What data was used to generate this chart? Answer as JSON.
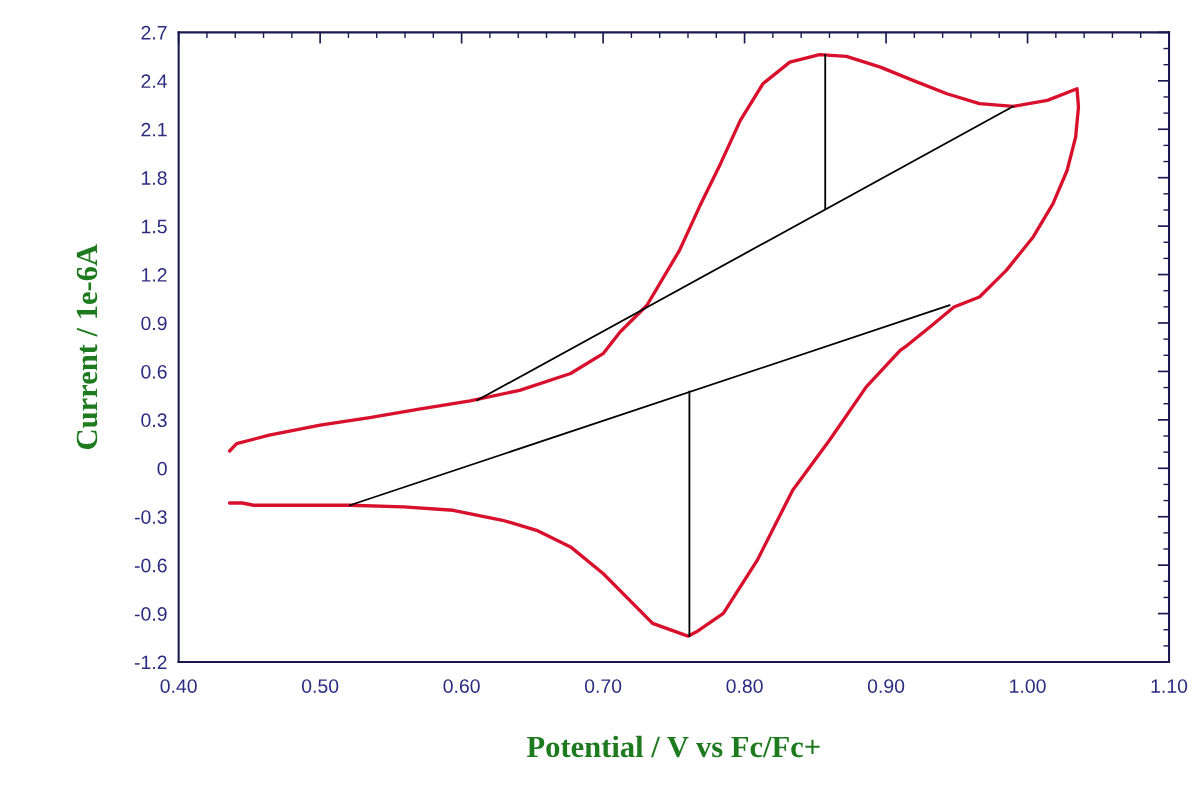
{
  "chart_data": {
    "type": "line",
    "xlabel": "Potential / V vs Fc/Fc+",
    "ylabel": "Current / 1e-6A",
    "xlim": [
      0.4,
      1.1
    ],
    "ylim": [
      -1.2,
      2.7
    ],
    "xticks": [
      {
        "value": 0.4,
        "label": "0.40"
      },
      {
        "value": 0.5,
        "label": "0.50"
      },
      {
        "value": 0.6,
        "label": "0.60"
      },
      {
        "value": 0.7,
        "label": "0.70"
      },
      {
        "value": 0.8,
        "label": "0.80"
      },
      {
        "value": 0.9,
        "label": "0.90"
      },
      {
        "value": 1.0,
        "label": "1.00"
      },
      {
        "value": 1.1,
        "label": "1.10"
      }
    ],
    "yticks": [
      -1.2,
      -0.9,
      -0.6,
      -0.3,
      0,
      0.3,
      0.6,
      0.9,
      1.2,
      1.5,
      1.8,
      2.1,
      2.4,
      2.7
    ],
    "grid": false,
    "legend": false,
    "marker": "none",
    "line_style": "solid",
    "series": [
      {
        "color": "#d8102c",
        "x": [
          0.436,
          0.441,
          0.464,
          0.5,
          0.535,
          0.57,
          0.606,
          0.641,
          0.677,
          0.7,
          0.712,
          0.731,
          0.754,
          0.768,
          0.783,
          0.797,
          0.813,
          0.832,
          0.853,
          0.872,
          0.896,
          0.919,
          0.943,
          0.966,
          0.99,
          1.014,
          1.035,
          1.036,
          1.034,
          1.028,
          1.018,
          1.004,
          0.985,
          0.966,
          0.948,
          0.931,
          0.915,
          0.91,
          0.886,
          0.86,
          0.834,
          0.809,
          0.785,
          0.766,
          0.76,
          0.735,
          0.7,
          0.677,
          0.653,
          0.629,
          0.594,
          0.559,
          0.521,
          0.453,
          0.445,
          0.436
        ],
        "values": [
          0.107,
          0.153,
          0.205,
          0.267,
          0.314,
          0.366,
          0.417,
          0.483,
          0.587,
          0.71,
          0.844,
          1.01,
          1.35,
          1.618,
          1.887,
          2.155,
          2.382,
          2.516,
          2.562,
          2.551,
          2.485,
          2.403,
          2.32,
          2.259,
          2.242,
          2.279,
          2.351,
          2.237,
          2.052,
          1.846,
          1.639,
          1.433,
          1.226,
          1.061,
          0.999,
          0.875,
          0.762,
          0.731,
          0.504,
          0.174,
          -0.136,
          -0.569,
          -0.899,
          -1.013,
          -1.04,
          -0.961,
          -0.652,
          -0.487,
          -0.384,
          -0.322,
          -0.26,
          -0.239,
          -0.229,
          -0.229,
          -0.215,
          -0.215
        ]
      },
      {
        "color": "#000000",
        "x": [
          0.611,
          0.99
        ],
        "values": [
          0.421,
          2.242
        ]
      },
      {
        "color": "#000000",
        "x": [
          0.857,
          0.857
        ],
        "values": [
          2.562,
          1.608
        ]
      },
      {
        "color": "#000000",
        "x": [
          0.521,
          0.945
        ],
        "values": [
          -0.229,
          1.01
        ]
      },
      {
        "color": "#000000",
        "x": [
          0.761,
          0.761
        ],
        "values": [
          0.477,
          -1.04
        ]
      }
    ]
  }
}
